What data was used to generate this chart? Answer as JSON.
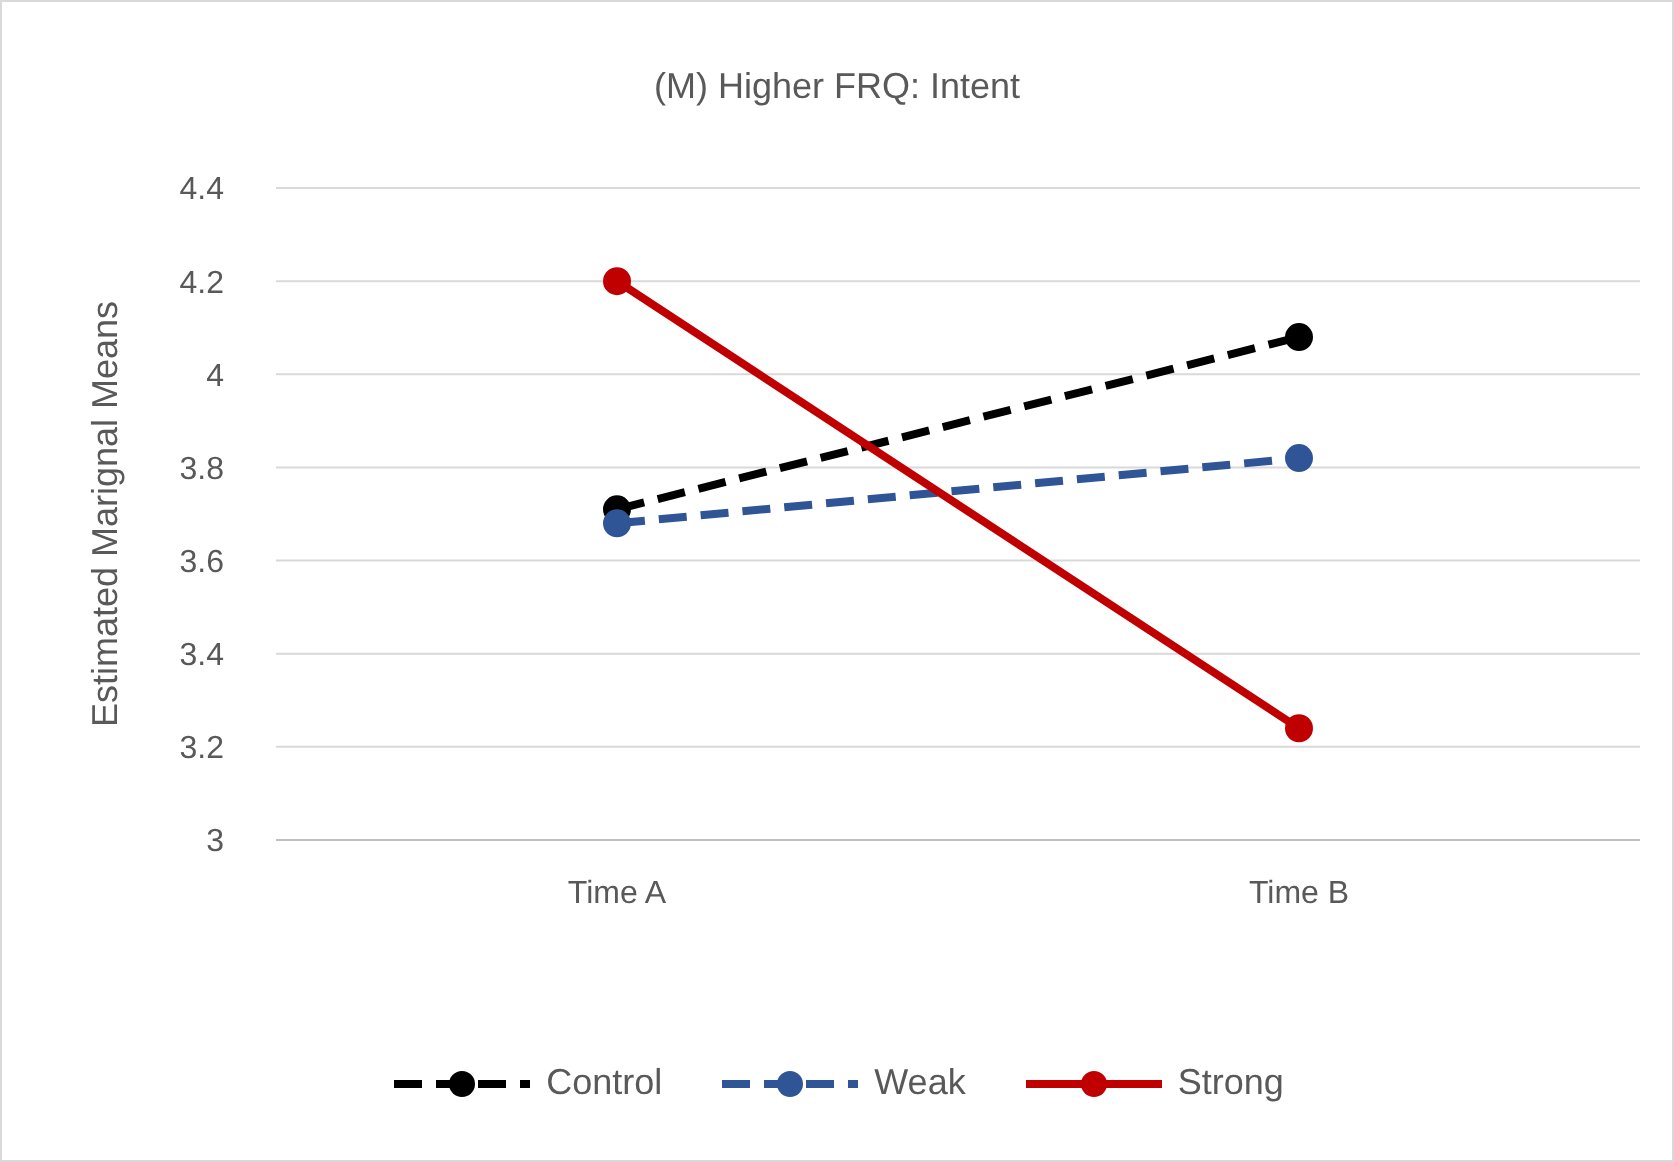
{
  "chart_data": {
    "type": "line",
    "title": "(M) Higher FRQ: Intent",
    "ylabel": "Estimated Marignal Means",
    "categories": [
      "Time A",
      "Time B"
    ],
    "series": [
      {
        "name": "Control",
        "color": "#000000",
        "line_style": "dashed",
        "values": [
          3.71,
          4.08
        ]
      },
      {
        "name": "Weak",
        "color": "#2f5597",
        "line_style": "dashed",
        "values": [
          3.68,
          3.82
        ]
      },
      {
        "name": "Strong",
        "color": "#c00000",
        "line_style": "solid",
        "values": [
          4.2,
          3.24
        ]
      }
    ],
    "ylim": [
      3,
      4.4
    ],
    "yticks": [
      3,
      3.2,
      3.4,
      3.6,
      3.8,
      4,
      4.2,
      4.4
    ],
    "grid": "y",
    "legend": "bottom",
    "marker": "circle"
  }
}
